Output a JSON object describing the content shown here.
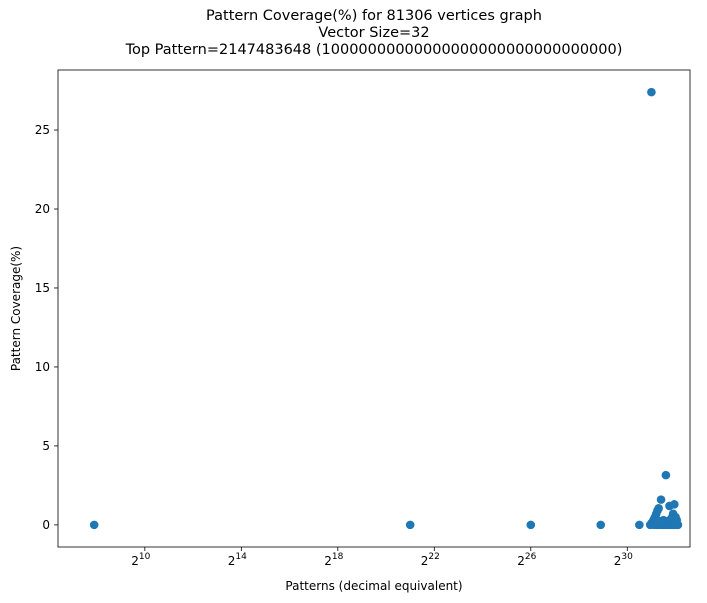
{
  "chart_data": {
    "type": "scatter",
    "title_lines": [
      "Pattern Coverage(%) for 81306 vertices graph",
      "Vector Size=32",
      "Top Pattern=2147483648 (10000000000000000000000000000000)"
    ],
    "xlabel": "Patterns (decimal equivalent)",
    "ylabel": "Pattern Coverage(%)",
    "x_scale": "log2",
    "x_tick_labels": [
      {
        "exp": 10,
        "base": "2",
        "sup": "10"
      },
      {
        "exp": 14,
        "base": "2",
        "sup": "14"
      },
      {
        "exp": 18,
        "base": "2",
        "sup": "18"
      },
      {
        "exp": 22,
        "base": "2",
        "sup": "22"
      },
      {
        "exp": 26,
        "base": "2",
        "sup": "26"
      },
      {
        "exp": 30,
        "base": "2",
        "sup": "30"
      }
    ],
    "x_range_log2": [
      6.4,
      32.6
    ],
    "y_ticks": [
      0,
      5,
      10,
      15,
      20,
      25
    ],
    "y_range": [
      -1.4,
      28.8
    ],
    "grid": false,
    "series": [
      {
        "color": "#1f77b4",
        "points_log2x_y": [
          [
            7.9,
            0.0
          ],
          [
            21.0,
            0.0
          ],
          [
            26.0,
            0.0
          ],
          [
            28.9,
            0.0
          ],
          [
            30.5,
            0.0
          ],
          [
            31.0,
            27.4
          ],
          [
            30.95,
            0.0
          ],
          [
            31.0,
            0.1
          ],
          [
            31.05,
            0.2
          ],
          [
            31.1,
            0.35
          ],
          [
            31.15,
            0.5
          ],
          [
            31.2,
            0.7
          ],
          [
            31.25,
            0.9
          ],
          [
            31.3,
            1.05
          ],
          [
            31.1,
            0.0
          ],
          [
            31.2,
            0.0
          ],
          [
            31.3,
            0.0
          ],
          [
            31.4,
            0.0
          ],
          [
            31.5,
            0.0
          ],
          [
            31.6,
            0.0
          ],
          [
            31.7,
            0.0
          ],
          [
            31.8,
            0.0
          ],
          [
            31.9,
            0.0
          ],
          [
            32.0,
            0.0
          ],
          [
            32.1,
            0.0
          ],
          [
            31.35,
            0.1
          ],
          [
            31.45,
            0.15
          ],
          [
            31.55,
            0.2
          ],
          [
            31.65,
            0.1
          ],
          [
            31.75,
            0.15
          ],
          [
            31.85,
            0.1
          ],
          [
            31.95,
            0.2
          ],
          [
            32.05,
            0.1
          ],
          [
            31.4,
            1.6
          ],
          [
            31.6,
            3.15
          ],
          [
            31.75,
            1.2
          ],
          [
            31.95,
            1.3
          ],
          [
            31.85,
            0.45
          ],
          [
            32.0,
            0.5
          ],
          [
            31.9,
            0.7
          ],
          [
            32.05,
            0.3
          ],
          [
            31.5,
            0.3
          ],
          [
            31.7,
            0.25
          ],
          [
            31.8,
            0.35
          ],
          [
            31.25,
            0.3
          ]
        ]
      }
    ]
  }
}
